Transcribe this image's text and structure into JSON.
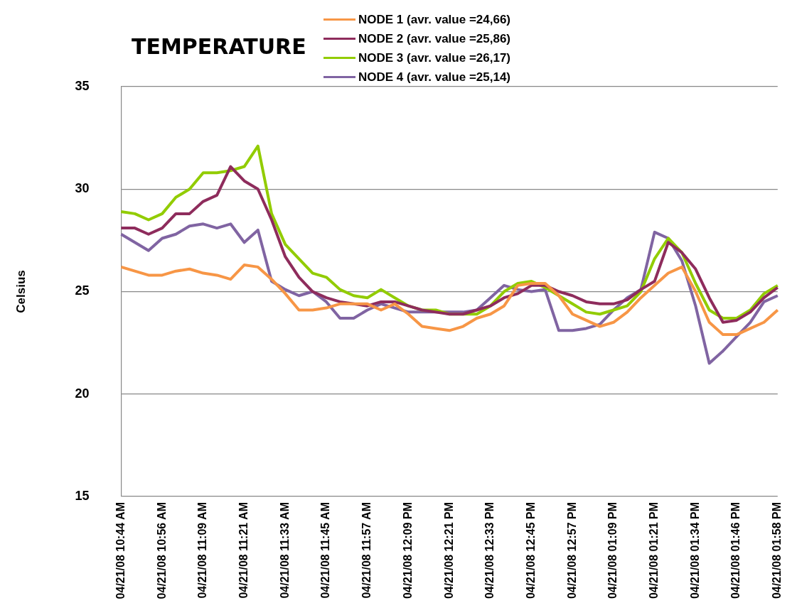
{
  "chart_data": {
    "type": "line",
    "title": "TEMPERATURE",
    "ylabel": "Celsius",
    "categories": [
      "04/21/08 10:44 AM",
      null,
      null,
      "04/21/08 10:56 AM",
      null,
      null,
      "04/21/08 11:09 AM",
      null,
      null,
      "04/21/08 11:21 AM",
      null,
      null,
      "04/21/08 11:33 AM",
      null,
      null,
      "04/21/08 11:45 AM",
      null,
      null,
      "04/21/08 11:57 AM",
      null,
      null,
      "04/21/08 12:09 PM",
      null,
      null,
      "04/21/08 12:21 PM",
      null,
      null,
      "04/21/08 12:33 PM",
      null,
      null,
      "04/21/08 12:45 PM",
      null,
      null,
      "04/21/08 12:57 PM",
      null,
      null,
      "04/21/08 01:09 PM",
      null,
      null,
      "04/21/08 01:21 PM",
      null,
      null,
      "04/21/08 01:34 PM",
      null,
      null,
      "04/21/08 01:46 PM",
      null,
      null,
      "04/21/08 01:58 PM"
    ],
    "series": [
      {
        "name": "NODE 1 (avr. value =24,66)",
        "color": "#f79646",
        "values": [
          26.2,
          26.0,
          25.8,
          25.8,
          26.0,
          26.1,
          25.9,
          25.8,
          25.6,
          26.3,
          26.2,
          25.6,
          24.9,
          24.1,
          24.1,
          24.2,
          24.4,
          24.4,
          24.4,
          24.1,
          24.4,
          23.9,
          23.3,
          23.2,
          23.1,
          23.3,
          23.7,
          23.9,
          24.3,
          25.3,
          25.4,
          25.4,
          24.8,
          23.9,
          23.6,
          23.3,
          23.5,
          24.0,
          24.7,
          25.3,
          25.9,
          26.2,
          25.0,
          23.5,
          22.9,
          22.9,
          23.2,
          23.5,
          24.1
        ]
      },
      {
        "name": "NODE 2 (avr. value =25,86)",
        "color": "#8e2c5c",
        "values": [
          28.1,
          28.1,
          27.8,
          28.1,
          28.8,
          28.8,
          29.4,
          29.7,
          31.1,
          30.4,
          30.0,
          28.5,
          26.7,
          25.7,
          25.0,
          24.7,
          24.5,
          24.4,
          24.3,
          24.5,
          24.5,
          24.3,
          24.1,
          24.0,
          23.9,
          23.9,
          24.1,
          24.3,
          24.7,
          24.9,
          25.3,
          25.3,
          25.0,
          24.8,
          24.5,
          24.4,
          24.4,
          24.6,
          25.1,
          25.5,
          27.4,
          26.9,
          26.1,
          24.7,
          23.5,
          23.6,
          24.0,
          24.7,
          25.2
        ]
      },
      {
        "name": "NODE 3 (avr. value =26,17)",
        "color": "#92cc00",
        "values": [
          28.9,
          28.8,
          28.5,
          28.8,
          29.6,
          30.0,
          30.8,
          30.8,
          30.9,
          31.1,
          32.1,
          28.8,
          27.3,
          26.6,
          25.9,
          25.7,
          25.1,
          24.8,
          24.7,
          25.1,
          24.7,
          24.3,
          24.1,
          24.1,
          23.9,
          23.9,
          23.9,
          24.3,
          25.0,
          25.4,
          25.5,
          25.2,
          24.8,
          24.4,
          24.0,
          23.9,
          24.1,
          24.3,
          25.0,
          26.6,
          27.6,
          26.9,
          25.4,
          24.1,
          23.7,
          23.7,
          24.1,
          24.9,
          25.3
        ]
      },
      {
        "name": "NODE 4 (avr. value =25,14)",
        "color": "#8064a2",
        "values": [
          27.8,
          27.4,
          27.0,
          27.6,
          27.8,
          28.2,
          28.3,
          28.1,
          28.3,
          27.4,
          28.0,
          25.5,
          25.1,
          24.8,
          25.0,
          24.5,
          23.7,
          23.7,
          24.1,
          24.4,
          24.2,
          24.0,
          24.0,
          24.0,
          24.0,
          24.0,
          24.1,
          24.7,
          25.3,
          25.1,
          25.0,
          25.1,
          23.1,
          23.1,
          23.2,
          23.4,
          24.1,
          24.7,
          25.1,
          27.9,
          27.6,
          26.5,
          24.3,
          21.5,
          22.1,
          22.8,
          23.5,
          24.5,
          24.8
        ]
      }
    ],
    "ylim": [
      15,
      35
    ],
    "yticks": [
      15,
      20,
      25,
      30,
      35
    ],
    "grid": "y",
    "legend": "top",
    "marker": "none",
    "line_style": "solid"
  }
}
